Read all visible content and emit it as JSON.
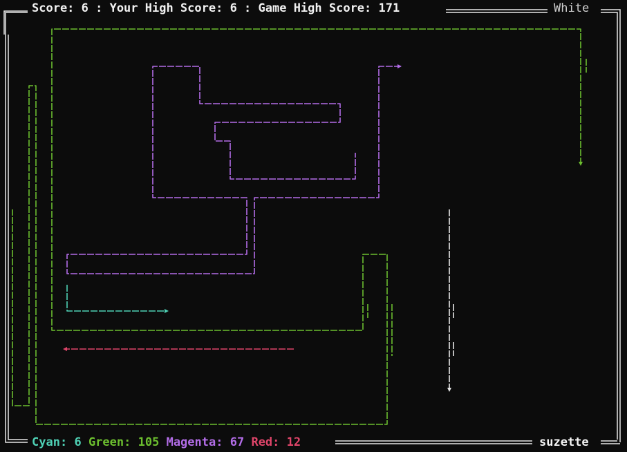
{
  "header": {
    "score_text": "Score: 6 : Your High Score: 6 : Game High Score: 171",
    "score": 6,
    "your_high_score": 6,
    "game_high_score": 171,
    "player_color": "White"
  },
  "footer": {
    "scores": [
      {
        "label": "Cyan:",
        "value": "6",
        "color": "#4fd1b5"
      },
      {
        "label": "Green:",
        "value": "105",
        "color": "#6cbf2f"
      },
      {
        "label": "Magenta:",
        "value": "67",
        "color": "#b36de8"
      },
      {
        "label": "Red:",
        "value": "12",
        "color": "#e0456a"
      }
    ],
    "username": "suzette"
  },
  "colors": {
    "background": "#0c0c0c",
    "border": "#e8e8e8",
    "white": "#e8e8e8",
    "cyan": "#4fd1b5",
    "green": "#6cbf2f",
    "magenta": "#b36de8",
    "red": "#e0456a"
  }
}
